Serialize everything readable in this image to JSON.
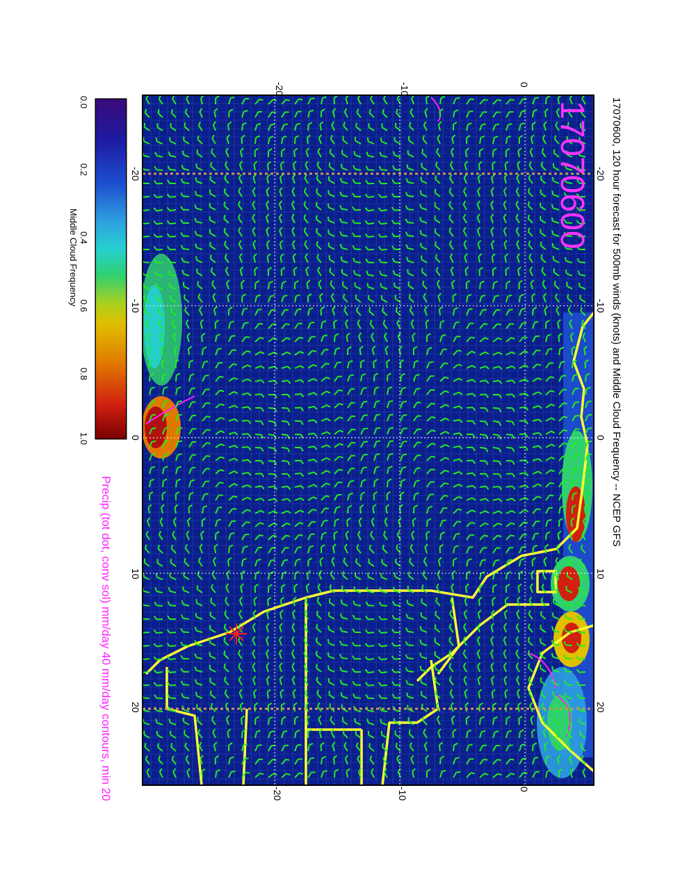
{
  "title": "17070600, 120 hour forecast for 500mb winds (knots) and Middle Cloud Frequency -- NCEP GFS",
  "stamp": "17070600",
  "precip_note": "Precip (tot dot, conv sol) mm/day 40 mm/day contours, min 20",
  "colorbar": {
    "label": "Middle Cloud Frequency",
    "ticks": [
      "0.0",
      "0.2",
      "0.4",
      "0.6",
      "0.8",
      "1.0"
    ],
    "stops": [
      "#3a0a7a",
      "#1c1aa0",
      "#1e4fd0",
      "#2ea0e0",
      "#25d0d0",
      "#30d070",
      "#a8d020",
      "#e0c000",
      "#e07800",
      "#d02010",
      "#7a0000"
    ]
  },
  "map": {
    "lon_labels_top": [
      "-20",
      "-10",
      "0",
      "10",
      "20"
    ],
    "lon_labels_bottom": [
      "-20",
      "-10",
      "0",
      "10",
      "20"
    ],
    "lat_labels_left": [
      "0",
      "-10",
      "-20"
    ],
    "lat_labels_right": [
      "-20",
      "-10",
      "0"
    ]
  },
  "colors": {
    "ocean": "#0a1e8c",
    "barb": "#22ee22",
    "coast": "#ffff33",
    "precip": "#ff20ff",
    "grid": "#ffffff",
    "graticule": "#c89a58"
  }
}
